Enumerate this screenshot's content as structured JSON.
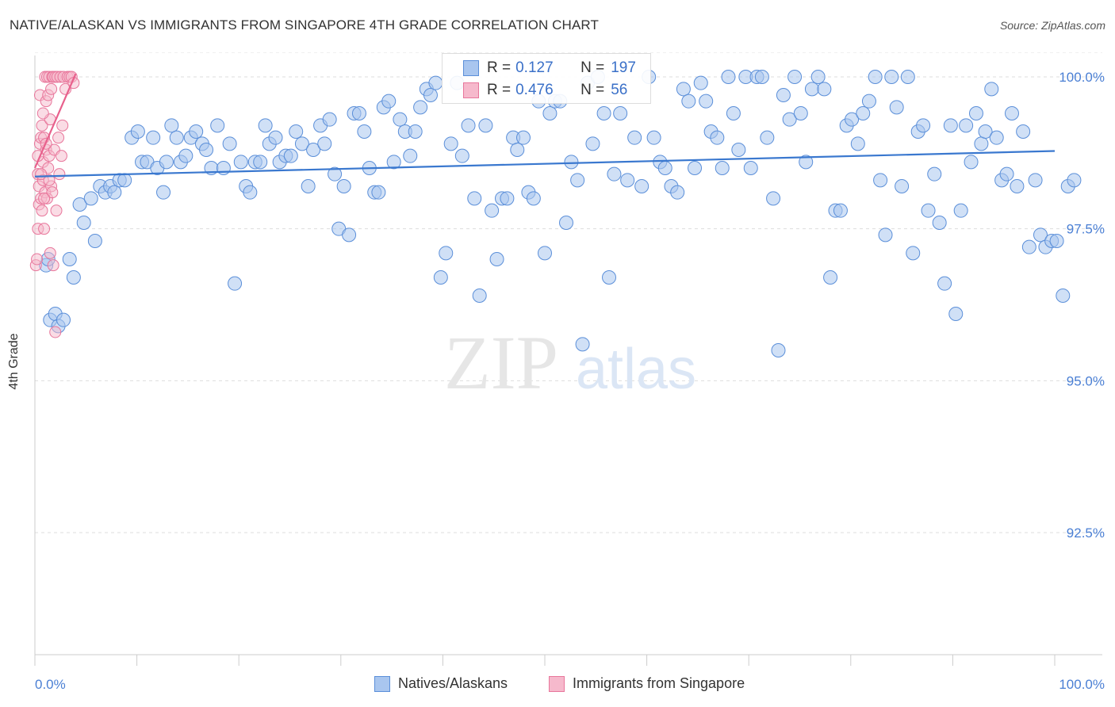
{
  "header": {
    "title": "NATIVE/ALASKAN VS IMMIGRANTS FROM SINGAPORE 4TH GRADE CORRELATION CHART",
    "source": "Source: ZipAtlas.com"
  },
  "watermark": {
    "zip": "ZIP",
    "atlas": "atlas"
  },
  "colors": {
    "blue": "#5b8fd9",
    "blue_fill": "#a9c6ef",
    "pink": "#e8769b",
    "pink_fill": "#f6b9cc",
    "tick_text": "#4a7fd4"
  },
  "legend": {
    "series1": {
      "r_label": "R =",
      "r_value": "0.127",
      "n_label": "N =",
      "n_value": "197"
    },
    "series2": {
      "r_label": "R =",
      "r_value": "0.476",
      "n_label": "N =",
      "n_value": "56"
    }
  },
  "chart_data": {
    "type": "scatter",
    "title": "NATIVE/ALASKAN VS IMMIGRANTS FROM SINGAPORE 4TH GRADE CORRELATION CHART",
    "xlabel": "",
    "ylabel": "4th Grade",
    "xlim": [
      0,
      100
    ],
    "ylim": [
      90.0,
      100.4
    ],
    "x_tick_labels": [
      "0.0%",
      "100.0%"
    ],
    "y_ticks": [
      92.5,
      95.0,
      97.5,
      100.0
    ],
    "y_tick_labels": [
      "92.5%",
      "95.0%",
      "97.5%",
      "100.0%"
    ],
    "grid": true,
    "legend_position": "bottom",
    "series": [
      {
        "name": "Natives/Alaskans",
        "color": "#5b8fd9",
        "trend": {
          "x": [
            0,
            100
          ],
          "y": [
            98.36,
            98.78
          ]
        },
        "points": [
          [
            1.1,
            96.9
          ],
          [
            1.3,
            97.0
          ],
          [
            1.5,
            96.0
          ],
          [
            2.0,
            96.1
          ],
          [
            2.3,
            95.9
          ],
          [
            2.8,
            96.0
          ],
          [
            3.4,
            97.0
          ],
          [
            3.8,
            96.7
          ],
          [
            4.4,
            97.9
          ],
          [
            4.8,
            97.6
          ],
          [
            5.5,
            98.0
          ],
          [
            5.9,
            97.3
          ],
          [
            6.4,
            98.2
          ],
          [
            6.9,
            98.1
          ],
          [
            7.4,
            98.2
          ],
          [
            7.8,
            98.1
          ],
          [
            8.3,
            98.3
          ],
          [
            8.8,
            98.3
          ],
          [
            9.5,
            99.0
          ],
          [
            10.1,
            99.1
          ],
          [
            10.5,
            98.6
          ],
          [
            11.0,
            98.6
          ],
          [
            11.6,
            99.0
          ],
          [
            12.0,
            98.5
          ],
          [
            12.6,
            98.1
          ],
          [
            12.9,
            98.6
          ],
          [
            13.4,
            99.2
          ],
          [
            13.9,
            99.0
          ],
          [
            14.3,
            98.6
          ],
          [
            14.8,
            98.7
          ],
          [
            15.3,
            99.0
          ],
          [
            15.8,
            99.1
          ],
          [
            16.4,
            98.9
          ],
          [
            16.8,
            98.8
          ],
          [
            17.3,
            98.5
          ],
          [
            17.9,
            99.2
          ],
          [
            18.5,
            98.5
          ],
          [
            19.1,
            98.9
          ],
          [
            19.6,
            96.6
          ],
          [
            20.2,
            98.6
          ],
          [
            20.7,
            98.2
          ],
          [
            21.1,
            98.1
          ],
          [
            21.6,
            98.6
          ],
          [
            22.1,
            98.6
          ],
          [
            22.6,
            99.2
          ],
          [
            23.0,
            98.9
          ],
          [
            23.6,
            99.0
          ],
          [
            24.0,
            98.6
          ],
          [
            24.6,
            98.7
          ],
          [
            25.1,
            98.7
          ],
          [
            25.6,
            99.1
          ],
          [
            26.2,
            98.9
          ],
          [
            26.8,
            98.2
          ],
          [
            27.3,
            98.8
          ],
          [
            28.0,
            99.2
          ],
          [
            28.4,
            98.9
          ],
          [
            28.9,
            99.3
          ],
          [
            29.4,
            98.4
          ],
          [
            29.8,
            97.5
          ],
          [
            30.3,
            98.2
          ],
          [
            30.8,
            97.4
          ],
          [
            31.3,
            99.4
          ],
          [
            31.8,
            99.4
          ],
          [
            32.3,
            99.1
          ],
          [
            32.8,
            98.5
          ],
          [
            33.3,
            98.1
          ],
          [
            33.7,
            98.1
          ],
          [
            34.2,
            99.5
          ],
          [
            34.7,
            99.6
          ],
          [
            35.2,
            98.6
          ],
          [
            35.8,
            99.3
          ],
          [
            36.3,
            99.1
          ],
          [
            36.8,
            98.7
          ],
          [
            37.3,
            99.1
          ],
          [
            37.8,
            99.5
          ],
          [
            38.4,
            99.8
          ],
          [
            38.8,
            99.7
          ],
          [
            39.3,
            99.9
          ],
          [
            39.8,
            96.7
          ],
          [
            40.3,
            97.1
          ],
          [
            40.8,
            98.9
          ],
          [
            41.4,
            99.9
          ],
          [
            41.9,
            98.7
          ],
          [
            42.5,
            99.2
          ],
          [
            43.1,
            98.0
          ],
          [
            43.6,
            96.4
          ],
          [
            44.2,
            99.2
          ],
          [
            44.8,
            97.8
          ],
          [
            45.3,
            97.0
          ],
          [
            45.8,
            98.0
          ],
          [
            46.3,
            98.0
          ],
          [
            46.9,
            99.0
          ],
          [
            47.3,
            98.8
          ],
          [
            47.9,
            99.0
          ],
          [
            48.4,
            98.1
          ],
          [
            48.9,
            98.0
          ],
          [
            49.4,
            99.6
          ],
          [
            50.0,
            97.1
          ],
          [
            50.5,
            99.4
          ],
          [
            51.0,
            99.6
          ],
          [
            51.5,
            99.6
          ],
          [
            52.1,
            97.6
          ],
          [
            52.6,
            98.6
          ],
          [
            53.2,
            98.3
          ],
          [
            53.7,
            95.6
          ],
          [
            54.2,
            99.9
          ],
          [
            54.7,
            98.9
          ],
          [
            55.2,
            100.0
          ],
          [
            55.8,
            99.4
          ],
          [
            56.3,
            96.7
          ],
          [
            56.8,
            98.4
          ],
          [
            57.4,
            99.4
          ],
          [
            58.1,
            98.3
          ],
          [
            58.8,
            99.0
          ],
          [
            59.5,
            98.2
          ],
          [
            60.2,
            100.0
          ],
          [
            60.7,
            99.0
          ],
          [
            61.3,
            98.6
          ],
          [
            61.8,
            98.5
          ],
          [
            62.4,
            98.2
          ],
          [
            63.0,
            98.1
          ],
          [
            63.6,
            99.8
          ],
          [
            64.1,
            99.6
          ],
          [
            64.7,
            98.5
          ],
          [
            65.3,
            99.9
          ],
          [
            65.8,
            99.6
          ],
          [
            66.3,
            99.1
          ],
          [
            66.9,
            99.0
          ],
          [
            67.4,
            98.5
          ],
          [
            68.0,
            100.0
          ],
          [
            68.5,
            99.4
          ],
          [
            69.0,
            98.8
          ],
          [
            69.7,
            100.0
          ],
          [
            70.2,
            98.5
          ],
          [
            70.8,
            100.0
          ],
          [
            71.3,
            100.0
          ],
          [
            71.8,
            99.0
          ],
          [
            72.4,
            98.0
          ],
          [
            72.9,
            95.5
          ],
          [
            73.4,
            99.7
          ],
          [
            74.0,
            99.3
          ],
          [
            74.5,
            100.0
          ],
          [
            75.1,
            99.4
          ],
          [
            75.6,
            98.6
          ],
          [
            76.2,
            99.8
          ],
          [
            76.8,
            100.0
          ],
          [
            77.4,
            99.8
          ],
          [
            78.0,
            96.7
          ],
          [
            78.5,
            97.8
          ],
          [
            79.0,
            97.8
          ],
          [
            79.6,
            99.2
          ],
          [
            80.1,
            99.3
          ],
          [
            80.7,
            98.9
          ],
          [
            81.2,
            99.4
          ],
          [
            81.8,
            99.6
          ],
          [
            82.4,
            100.0
          ],
          [
            82.9,
            98.3
          ],
          [
            83.4,
            97.4
          ],
          [
            84.0,
            100.0
          ],
          [
            84.5,
            99.5
          ],
          [
            85.0,
            98.2
          ],
          [
            85.6,
            100.0
          ],
          [
            86.1,
            97.1
          ],
          [
            86.6,
            99.1
          ],
          [
            87.1,
            99.2
          ],
          [
            87.6,
            97.8
          ],
          [
            88.2,
            98.4
          ],
          [
            88.7,
            97.6
          ],
          [
            89.2,
            96.6
          ],
          [
            89.8,
            99.2
          ],
          [
            90.3,
            96.1
          ],
          [
            90.8,
            97.8
          ],
          [
            91.3,
            99.2
          ],
          [
            91.8,
            98.6
          ],
          [
            92.3,
            99.4
          ],
          [
            92.8,
            98.9
          ],
          [
            93.2,
            99.1
          ],
          [
            93.8,
            99.8
          ],
          [
            94.3,
            99.0
          ],
          [
            94.8,
            98.3
          ],
          [
            95.3,
            98.4
          ],
          [
            95.8,
            99.4
          ],
          [
            96.3,
            98.2
          ],
          [
            96.9,
            99.1
          ],
          [
            97.5,
            97.2
          ],
          [
            98.1,
            98.3
          ],
          [
            98.6,
            97.4
          ],
          [
            99.1,
            97.2
          ],
          [
            99.7,
            97.3
          ],
          [
            100.2,
            97.3
          ],
          [
            100.8,
            96.4
          ],
          [
            101.3,
            98.2
          ],
          [
            101.9,
            98.3
          ]
        ]
      },
      {
        "name": "Immigrants from Singapore",
        "color": "#e8769b",
        "trend": {
          "x": [
            0.0,
            4.0
          ],
          "y": [
            98.5,
            100.05
          ]
        },
        "points": [
          [
            0.1,
            96.9
          ],
          [
            0.2,
            97.0
          ],
          [
            0.3,
            98.4
          ],
          [
            0.3,
            97.5
          ],
          [
            0.4,
            98.2
          ],
          [
            0.4,
            97.9
          ],
          [
            0.5,
            98.9
          ],
          [
            0.5,
            99.7
          ],
          [
            0.6,
            99.0
          ],
          [
            0.6,
            98.0
          ],
          [
            0.7,
            97.8
          ],
          [
            0.7,
            99.2
          ],
          [
            0.8,
            98.6
          ],
          [
            0.8,
            98.3
          ],
          [
            0.9,
            97.5
          ],
          [
            0.9,
            99.0
          ],
          [
            1.0,
            100.0
          ],
          [
            1.0,
            98.1
          ],
          [
            1.1,
            99.6
          ],
          [
            1.1,
            98.8
          ],
          [
            1.2,
            100.0
          ],
          [
            1.2,
            98.0
          ],
          [
            1.3,
            98.5
          ],
          [
            1.3,
            99.7
          ],
          [
            1.4,
            98.7
          ],
          [
            1.4,
            100.0
          ],
          [
            1.5,
            97.1
          ],
          [
            1.5,
            99.3
          ],
          [
            1.6,
            98.2
          ],
          [
            1.6,
            99.8
          ],
          [
            1.7,
            100.0
          ],
          [
            1.7,
            98.1
          ],
          [
            1.8,
            96.9
          ],
          [
            1.8,
            100.0
          ],
          [
            1.9,
            98.8
          ],
          [
            2.0,
            100.0
          ],
          [
            2.0,
            95.8
          ],
          [
            2.1,
            97.8
          ],
          [
            2.2,
            100.0
          ],
          [
            2.3,
            99.0
          ],
          [
            2.4,
            98.4
          ],
          [
            2.5,
            100.0
          ],
          [
            2.6,
            98.7
          ],
          [
            2.7,
            99.2
          ],
          [
            2.8,
            100.0
          ],
          [
            3.0,
            99.8
          ],
          [
            3.2,
            100.0
          ],
          [
            3.4,
            100.0
          ],
          [
            3.6,
            100.0
          ],
          [
            3.8,
            99.9
          ],
          [
            0.6,
            98.4
          ],
          [
            0.9,
            98.0
          ],
          [
            1.1,
            98.9
          ],
          [
            0.3,
            98.7
          ],
          [
            0.8,
            99.4
          ],
          [
            1.4,
            98.3
          ]
        ]
      }
    ]
  },
  "bottom_legend": {
    "item1": "Natives/Alaskans",
    "item2": "Immigrants from Singapore"
  }
}
